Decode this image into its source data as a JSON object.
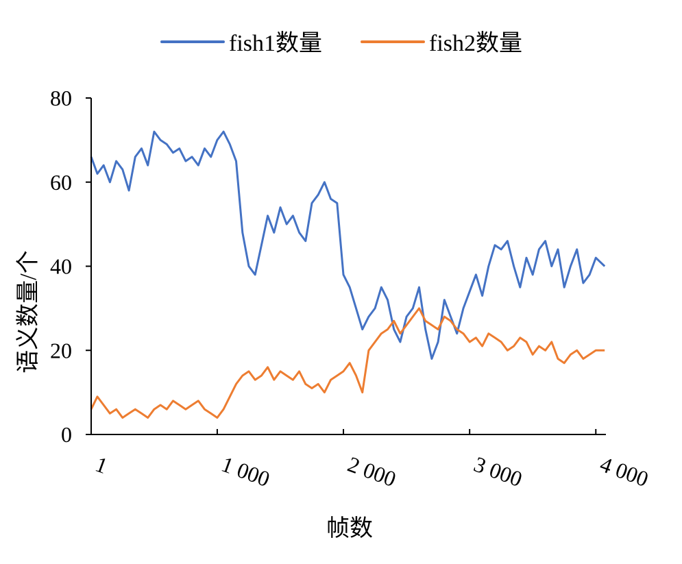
{
  "chart_data": {
    "type": "line",
    "title": "",
    "xlabel": "帧数",
    "ylabel": "语义数量/个",
    "xlim": [
      1,
      4080
    ],
    "ylim": [
      0,
      80
    ],
    "y_ticks": [
      0,
      20,
      40,
      60,
      80
    ],
    "x_ticks": [
      {
        "value": 1,
        "label": "1"
      },
      {
        "value": 1000,
        "label": "1 000"
      },
      {
        "value": 2000,
        "label": "2 000"
      },
      {
        "value": 3000,
        "label": "3 000"
      },
      {
        "value": 4000,
        "label": "4 000"
      }
    ],
    "legend_position": "top-center",
    "grid": false,
    "series": [
      {
        "name": "fish1数量",
        "color": "#4472C4",
        "x": [
          1,
          50,
          100,
          150,
          200,
          250,
          300,
          350,
          400,
          450,
          500,
          550,
          600,
          650,
          700,
          750,
          800,
          850,
          900,
          950,
          1000,
          1050,
          1100,
          1150,
          1200,
          1250,
          1300,
          1350,
          1400,
          1450,
          1500,
          1550,
          1600,
          1650,
          1700,
          1750,
          1800,
          1850,
          1900,
          1950,
          2000,
          2050,
          2100,
          2150,
          2200,
          2250,
          2300,
          2350,
          2400,
          2450,
          2500,
          2550,
          2600,
          2650,
          2700,
          2750,
          2800,
          2850,
          2900,
          2950,
          3000,
          3050,
          3100,
          3150,
          3200,
          3250,
          3300,
          3350,
          3400,
          3450,
          3500,
          3550,
          3600,
          3650,
          3700,
          3750,
          3800,
          3850,
          3900,
          3950,
          4000,
          4070
        ],
        "values": [
          66,
          62,
          64,
          60,
          65,
          63,
          58,
          66,
          68,
          64,
          72,
          70,
          69,
          67,
          68,
          65,
          66,
          64,
          68,
          66,
          70,
          72,
          69,
          65,
          48,
          40,
          38,
          45,
          52,
          48,
          54,
          50,
          52,
          48,
          46,
          55,
          57,
          60,
          56,
          55,
          38,
          35,
          30,
          25,
          28,
          30,
          35,
          32,
          25,
          22,
          28,
          30,
          35,
          25,
          18,
          22,
          32,
          28,
          24,
          30,
          34,
          38,
          33,
          40,
          45,
          44,
          46,
          40,
          35,
          42,
          38,
          44,
          46,
          40,
          44,
          35,
          40,
          44,
          36,
          38,
          42,
          40
        ]
      },
      {
        "name": "fish2数量",
        "color": "#ED7D31",
        "x": [
          1,
          50,
          100,
          150,
          200,
          250,
          300,
          350,
          400,
          450,
          500,
          550,
          600,
          650,
          700,
          750,
          800,
          850,
          900,
          950,
          1000,
          1050,
          1100,
          1150,
          1200,
          1250,
          1300,
          1350,
          1400,
          1450,
          1500,
          1550,
          1600,
          1650,
          1700,
          1750,
          1800,
          1850,
          1900,
          1950,
          2000,
          2050,
          2100,
          2150,
          2200,
          2250,
          2300,
          2350,
          2400,
          2450,
          2500,
          2550,
          2600,
          2650,
          2700,
          2750,
          2800,
          2850,
          2900,
          2950,
          3000,
          3050,
          3100,
          3150,
          3200,
          3250,
          3300,
          3350,
          3400,
          3450,
          3500,
          3550,
          3600,
          3650,
          3700,
          3750,
          3800,
          3850,
          3900,
          3950,
          4000,
          4070
        ],
        "values": [
          6,
          9,
          7,
          5,
          6,
          4,
          5,
          6,
          5,
          4,
          6,
          7,
          6,
          8,
          7,
          6,
          7,
          8,
          6,
          5,
          4,
          6,
          9,
          12,
          14,
          15,
          13,
          14,
          16,
          13,
          15,
          14,
          13,
          15,
          12,
          11,
          12,
          10,
          13,
          14,
          15,
          17,
          14,
          10,
          20,
          22,
          24,
          25,
          27,
          24,
          26,
          28,
          30,
          27,
          26,
          25,
          28,
          27,
          25,
          24,
          22,
          23,
          21,
          24,
          23,
          22,
          20,
          21,
          23,
          22,
          19,
          21,
          20,
          22,
          18,
          17,
          19,
          20,
          18,
          19,
          20,
          20
        ]
      }
    ]
  }
}
